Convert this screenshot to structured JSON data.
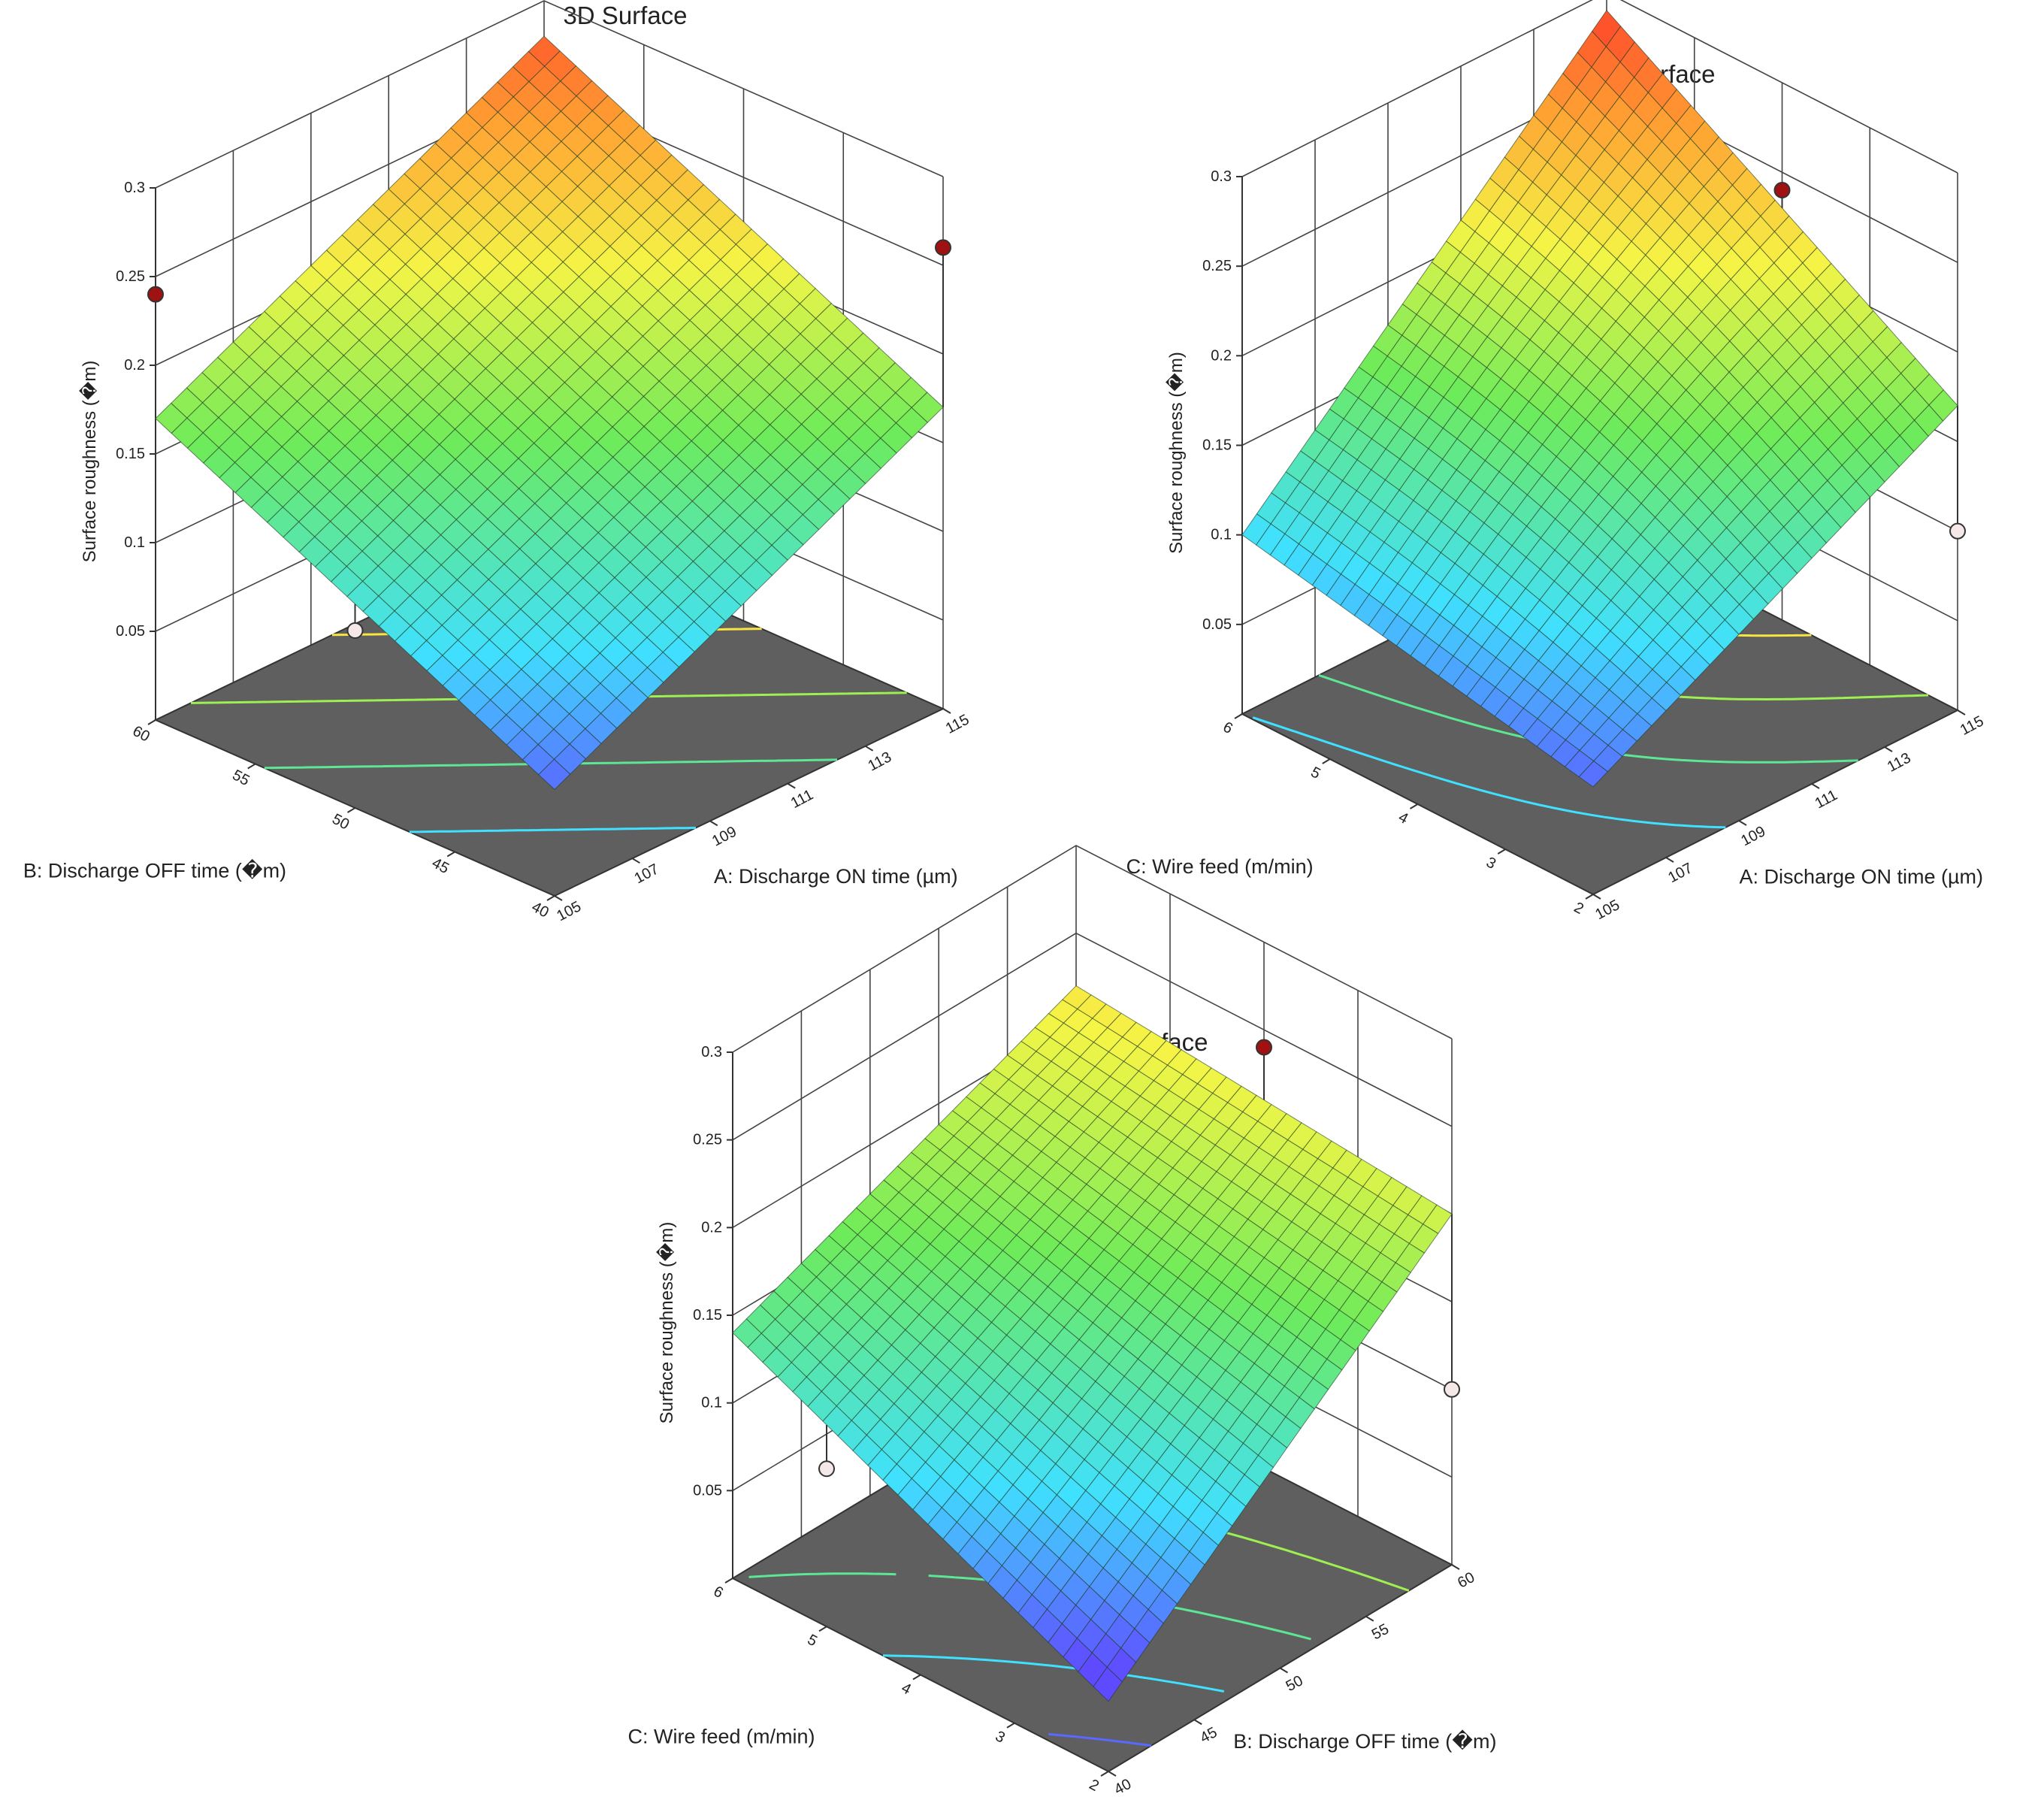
{
  "chart_data": [
    {
      "type": "surface3d",
      "title": "3D Surface",
      "zlabel": "Surface roughness (�m)",
      "zlim": [
        0,
        0.3
      ],
      "zticks": [
        "0.05",
        "0.1",
        "0.15",
        "0.2",
        "0.25",
        "0.3"
      ],
      "xlabel": "A: Discharge ON time (µm)",
      "xlim": [
        105,
        115
      ],
      "xticks": [
        "105",
        "107",
        "109",
        "111",
        "113",
        "115"
      ],
      "ylabel_depth": "B: Discharge OFF time  (�m)",
      "ylim": [
        40,
        60
      ],
      "yticks": [
        "40",
        "45",
        "50",
        "55",
        "60"
      ],
      "corners": {
        "x_low_y_low": 0.06,
        "x_high_y_low": 0.17,
        "x_low_y_high": 0.17,
        "x_high_y_high": 0.28
      },
      "design_points": [
        {
          "x": 105,
          "y": 60,
          "z": 0.24,
          "above": true
        },
        {
          "x": 115,
          "y": 40,
          "z": 0.26,
          "above": true
        },
        {
          "x": 110,
          "y": 50,
          "z": 0.2,
          "above": true
        },
        {
          "x": 110,
          "y": 50,
          "z": 0.19,
          "above": true
        },
        {
          "x": 110,
          "y": 50,
          "z": 0.18,
          "above": true
        },
        {
          "x": 110,
          "y": 50,
          "z": 0.17,
          "above": true
        },
        {
          "x": 105,
          "y": 50,
          "z": 0.1,
          "above": false
        },
        {
          "x": 115,
          "y": 50,
          "z": 0.1,
          "above": false
        }
      ]
    },
    {
      "type": "surface3d",
      "title": "3D Surface",
      "zlabel": "Surface roughness (�m)",
      "zlim": [
        0,
        0.3
      ],
      "zticks": [
        "0.05",
        "0.1",
        "0.15",
        "0.2",
        "0.25",
        "0.3"
      ],
      "xlabel": "A: Discharge ON time (µm)",
      "xlim": [
        105,
        115
      ],
      "xticks": [
        "105",
        "107",
        "109",
        "111",
        "113",
        "115"
      ],
      "ylabel_depth": "C: Wire feed (m/min)",
      "ylim": [
        2,
        6
      ],
      "yticks": [
        "2",
        "3",
        "4",
        "5",
        "6"
      ],
      "corners": {
        "x_low_y_low": 0.06,
        "x_high_y_low": 0.17,
        "x_low_y_high": 0.1,
        "x_high_y_high": 0.29
      },
      "design_points": [
        {
          "x": 115,
          "y": 4,
          "z": 0.24,
          "above": true
        },
        {
          "x": 110,
          "y": 4,
          "z": 0.21,
          "above": true
        },
        {
          "x": 110,
          "y": 4,
          "z": 0.2,
          "above": true
        },
        {
          "x": 110,
          "y": 4,
          "z": 0.19,
          "above": true
        },
        {
          "x": 110,
          "y": 4,
          "z": 0.18,
          "above": true
        },
        {
          "x": 105,
          "y": 4,
          "z": 0.11,
          "above": false
        },
        {
          "x": 115,
          "y": 2,
          "z": 0.1,
          "above": false
        }
      ]
    },
    {
      "type": "surface3d",
      "title": "3D Surface",
      "zlabel": "Surface roughness (�m)",
      "zlim": [
        0,
        0.3
      ],
      "zticks": [
        "0.05",
        "0.1",
        "0.15",
        "0.2",
        "0.25",
        "0.3"
      ],
      "xlabel": "B: Discharge OFF time  (�m)",
      "xlim": [
        40,
        60
      ],
      "xticks": [
        "40",
        "45",
        "50",
        "55",
        "60"
      ],
      "ylabel_depth": "C: Wire feed (m/min)",
      "ylim": [
        2,
        6
      ],
      "yticks": [
        "2",
        "3",
        "4",
        "5",
        "6"
      ],
      "corners": {
        "x_low_y_low": 0.04,
        "x_high_y_low": 0.2,
        "x_low_y_high": 0.14,
        "x_high_y_high": 0.22
      },
      "design_points": [
        {
          "x": 60,
          "y": 4,
          "z": 0.24,
          "above": true
        },
        {
          "x": 50,
          "y": 4,
          "z": 0.2,
          "above": true
        },
        {
          "x": 50,
          "y": 4,
          "z": 0.19,
          "above": true
        },
        {
          "x": 50,
          "y": 4,
          "z": 0.18,
          "above": true
        },
        {
          "x": 50,
          "y": 4,
          "z": 0.17,
          "above": true
        },
        {
          "x": 40,
          "y": 5,
          "z": 0.09,
          "above": false
        },
        {
          "x": 60,
          "y": 2,
          "z": 0.1,
          "above": false
        }
      ]
    }
  ]
}
